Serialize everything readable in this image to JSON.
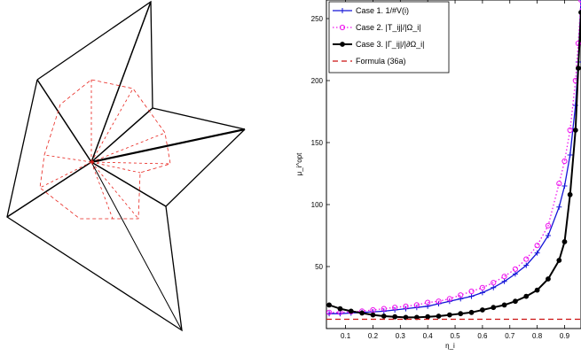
{
  "mesh": {
    "colors": {
      "edge": "#000000",
      "dual": "#e8231c"
    }
  },
  "chart_data": {
    "type": "line",
    "xlabel": "η_i",
    "ylabel": "μ_i^opt",
    "xlim": [
      0.03,
      0.96
    ],
    "ylim": [
      0,
      265
    ],
    "x_ticks": [
      "0.1",
      "0.2",
      "0.3",
      "0.4",
      "0.5",
      "0.6",
      "0.7",
      "0.8",
      "0.9"
    ],
    "y_ticks": [
      "50",
      "100",
      "150",
      "200",
      "250"
    ],
    "legend_position": "top-left",
    "series": [
      {
        "name": "Case 1. 1/#V(i)",
        "color": "#1515d8",
        "marker": "plus",
        "dash": "solid",
        "x": [
          0.04,
          0.08,
          0.12,
          0.16,
          0.2,
          0.24,
          0.28,
          0.32,
          0.36,
          0.4,
          0.44,
          0.48,
          0.52,
          0.56,
          0.6,
          0.64,
          0.68,
          0.72,
          0.76,
          0.8,
          0.84,
          0.88,
          0.9,
          0.92,
          0.94,
          0.95,
          0.96
        ],
        "y": [
          12,
          12,
          12.5,
          13,
          13.5,
          14,
          15,
          16,
          17,
          18,
          20,
          22,
          24,
          26,
          29,
          33,
          38,
          44,
          51,
          61,
          75,
          98,
          115,
          140,
          180,
          215,
          265
        ]
      },
      {
        "name": "Case 2. |T_ij|/|Ω_i|",
        "color": "#ee14ee",
        "marker": "circle",
        "dash": "dotted",
        "x": [
          0.04,
          0.08,
          0.12,
          0.16,
          0.2,
          0.24,
          0.28,
          0.32,
          0.36,
          0.4,
          0.44,
          0.48,
          0.52,
          0.56,
          0.6,
          0.64,
          0.68,
          0.72,
          0.76,
          0.8,
          0.84,
          0.88,
          0.9,
          0.92,
          0.94,
          0.95,
          0.96
        ],
        "y": [
          13,
          13,
          13.5,
          14,
          15,
          16,
          17,
          18,
          19,
          21,
          22,
          24,
          27,
          30,
          33,
          37,
          42,
          48,
          56,
          67,
          83,
          117,
          135,
          160,
          200,
          230,
          265
        ]
      },
      {
        "name": "Case 3. |Γ_ij|/|∂Ω_i|",
        "color": "#000000",
        "marker": "dot",
        "dash": "solid",
        "x": [
          0.04,
          0.08,
          0.12,
          0.16,
          0.2,
          0.24,
          0.28,
          0.32,
          0.36,
          0.4,
          0.44,
          0.48,
          0.52,
          0.56,
          0.6,
          0.64,
          0.68,
          0.72,
          0.76,
          0.8,
          0.84,
          0.88,
          0.9,
          0.92,
          0.94,
          0.95,
          0.96
        ],
        "y": [
          19,
          16,
          14,
          12.5,
          11,
          10,
          9.5,
          9,
          9,
          9.5,
          10,
          11,
          12,
          13,
          15,
          17,
          19,
          22,
          26,
          31,
          40,
          55,
          70,
          108,
          160,
          210,
          255
        ]
      },
      {
        "name": "Formula (36a)",
        "color": "#cc1111",
        "marker": "none",
        "dash": "dashed",
        "x": [
          0.03,
          0.96
        ],
        "y": [
          7.5,
          7.5
        ]
      }
    ]
  }
}
